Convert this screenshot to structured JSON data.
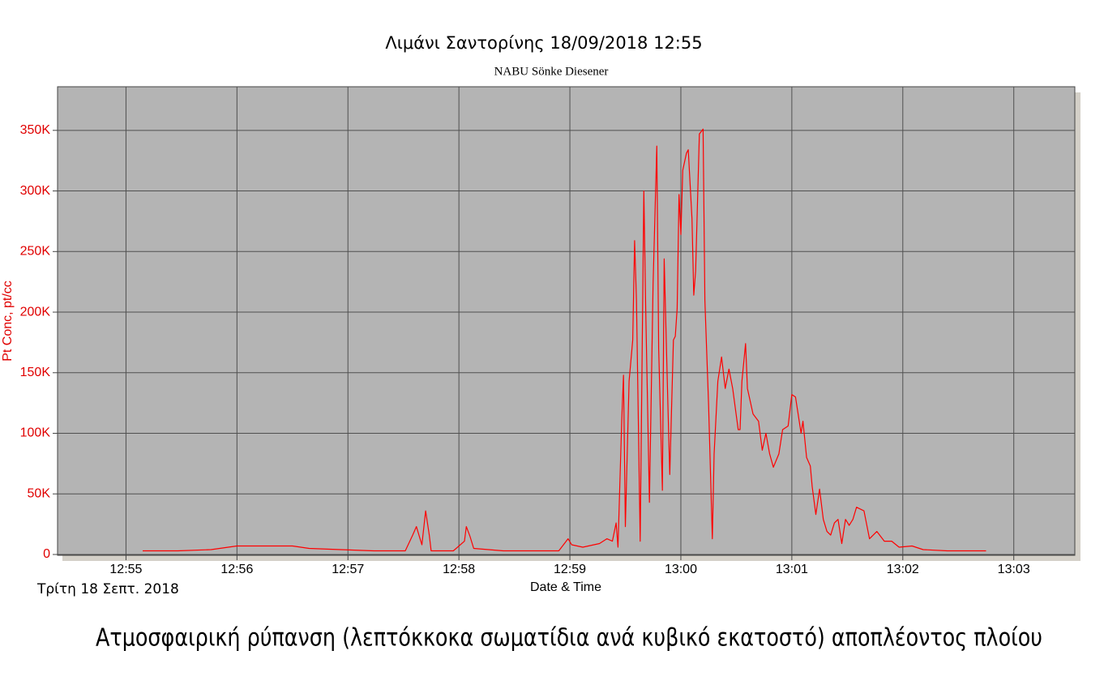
{
  "chart_data": {
    "type": "line",
    "title": "Λιμάνι Σαντορίνης 18/09/2018 12:55",
    "subtitle": "NABU Sönke Diesener",
    "x_label": "Date & Time",
    "y_label": "Pt Conc, pt/cc",
    "date_label": "Τρίτη 18 Σεπτ. 2018",
    "caption": "Ατμοσφαιρική ρύπανση (λεπτόκκοκα σωματίδια ανά κυβικό εκατοστό) αποπλέοντος πλοίου",
    "color": "#ff0000",
    "grid": true,
    "xlim": [
      "12:54:23",
      "13:03:33"
    ],
    "xticks": [
      "12:55",
      "12:56",
      "12:57",
      "12:58",
      "12:59",
      "13:00",
      "13:01",
      "13:02",
      "13:03"
    ],
    "ylim": [
      0,
      386000
    ],
    "yticks": [
      {
        "value": 0,
        "label": "0"
      },
      {
        "value": 50000,
        "label": "50K"
      },
      {
        "value": 100000,
        "label": "100K"
      },
      {
        "value": 150000,
        "label": "150K"
      },
      {
        "value": 200000,
        "label": "200K"
      },
      {
        "value": 250000,
        "label": "250K"
      },
      {
        "value": 300000,
        "label": "300K"
      },
      {
        "value": 350000,
        "label": "350K"
      }
    ],
    "x": [
      "12:55:09",
      "12:55:28",
      "12:55:46",
      "12:56:00",
      "12:56:17",
      "12:56:30",
      "12:56:39",
      "12:56:56",
      "12:57:14",
      "12:57:31",
      "12:57:35",
      "12:57:37",
      "12:57:39",
      "12:57:40",
      "12:57:42",
      "12:57:44",
      "12:57:45",
      "12:57:57",
      "12:58:03",
      "12:58:04",
      "12:58:06",
      "12:58:08",
      "12:58:24",
      "12:58:54",
      "12:58:59",
      "12:59:01",
      "12:59:07",
      "12:59:16",
      "12:59:20",
      "12:59:23",
      "12:59:25",
      "12:59:26",
      "12:59:28",
      "12:59:29",
      "12:59:30",
      "12:59:32",
      "12:59:34",
      "12:59:35",
      "12:59:36",
      "12:59:38",
      "12:59:40",
      "12:59:41",
      "12:59:43",
      "12:59:45",
      "12:59:47",
      "12:59:48",
      "12:59:50",
      "12:59:51",
      "12:59:53",
      "12:59:54",
      "12:59:56",
      "12:59:57",
      "12:59:58",
      "12:59:59",
      "13:00:00",
      "13:00:01",
      "13:00:03",
      "13:00:04",
      "13:00:06",
      "13:00:07",
      "13:00:08",
      "13:00:10",
      "13:00:12",
      "13:00:13",
      "13:00:15",
      "13:00:17",
      "13:00:18",
      "13:00:20",
      "13:00:21",
      "13:00:22",
      "13:00:24",
      "13:00:26",
      "13:00:28",
      "13:00:31",
      "13:00:32",
      "13:00:33",
      "13:00:35",
      "13:00:36",
      "13:00:39",
      "13:00:42",
      "13:00:44",
      "13:00:46",
      "13:00:48",
      "13:00:50",
      "13:00:53",
      "13:00:55",
      "13:00:58",
      "13:01:00",
      "13:01:02",
      "13:01:05",
      "13:01:06",
      "13:01:08",
      "13:01:10",
      "13:01:11",
      "13:01:13",
      "13:01:15",
      "13:01:17",
      "13:01:19",
      "13:01:21",
      "13:01:23",
      "13:01:25",
      "13:01:27",
      "13:01:29",
      "13:01:31",
      "13:01:33",
      "13:01:35",
      "13:01:39",
      "13:01:42",
      "13:01:46",
      "13:01:50",
      "13:01:54",
      "13:01:58",
      "13:02:05",
      "13:02:11",
      "13:02:24",
      "13:02:45"
    ],
    "values": [
      3000,
      3000,
      4000,
      7000,
      7000,
      7000,
      5000,
      4000,
      3000,
      3000,
      16000,
      23000,
      13000,
      8000,
      36000,
      16000,
      3000,
      3000,
      11000,
      23000,
      15000,
      5000,
      3000,
      3000,
      13000,
      8000,
      6000,
      9000,
      13000,
      11000,
      26000,
      6000,
      110000,
      148000,
      23000,
      143000,
      177000,
      259000,
      210000,
      11000,
      300000,
      203000,
      43000,
      223000,
      337000,
      170000,
      53000,
      244000,
      123000,
      66000,
      177000,
      180000,
      203000,
      297000,
      264000,
      317000,
      331000,
      334000,
      277000,
      214000,
      234000,
      347000,
      351000,
      210000,
      123000,
      13000,
      83000,
      143000,
      153000,
      163000,
      137000,
      153000,
      137000,
      103000,
      103000,
      143000,
      174000,
      137000,
      116000,
      110000,
      86000,
      100000,
      83000,
      72000,
      83000,
      103000,
      106000,
      132000,
      130000,
      100000,
      110000,
      80000,
      73000,
      56000,
      33000,
      54000,
      29000,
      19000,
      16000,
      26000,
      29000,
      9000,
      29000,
      24000,
      29000,
      39000,
      36000,
      13000,
      19000,
      11000,
      11000,
      6000,
      7000,
      4000,
      3000,
      3000
    ]
  }
}
